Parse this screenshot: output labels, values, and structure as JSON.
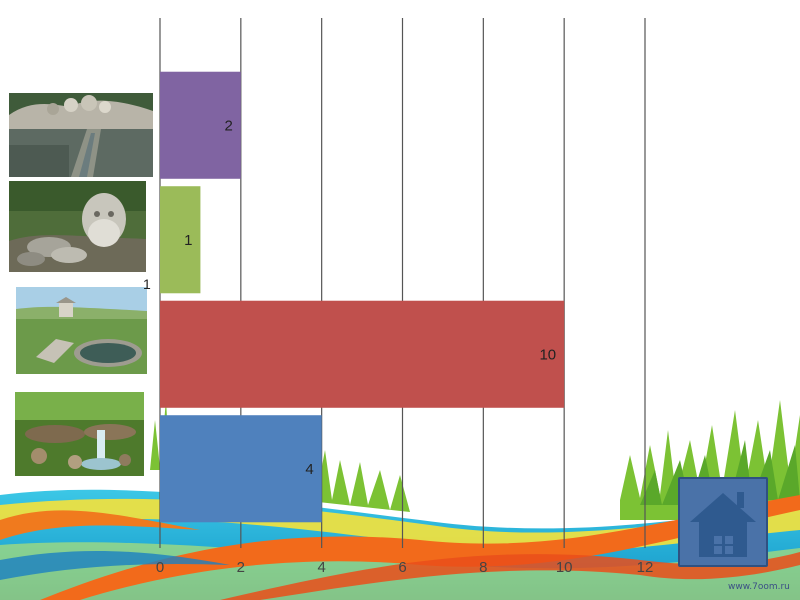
{
  "chart_data": {
    "type": "bar",
    "orientation": "horizontal",
    "categories": [
      "stone fountain",
      "carved stone face",
      "spring pool",
      "waterfall stream"
    ],
    "values": [
      2,
      1,
      10,
      4
    ],
    "data_labels": [
      "2",
      "1",
      "10",
      "4"
    ],
    "bar_colors": [
      "#8064a2",
      "#9bbb59",
      "#c0504d",
      "#4f81bd"
    ],
    "xlim": [
      0,
      12
    ],
    "xticks": [
      "0",
      "2",
      "4",
      "6",
      "8",
      "10",
      "12"
    ],
    "grid": true,
    "legend": "none",
    "title": "",
    "xlabel": "",
    "ylabel": ""
  },
  "stray_label": "1",
  "home_icon": "house-icon",
  "watermark": "www.7oom.ru"
}
